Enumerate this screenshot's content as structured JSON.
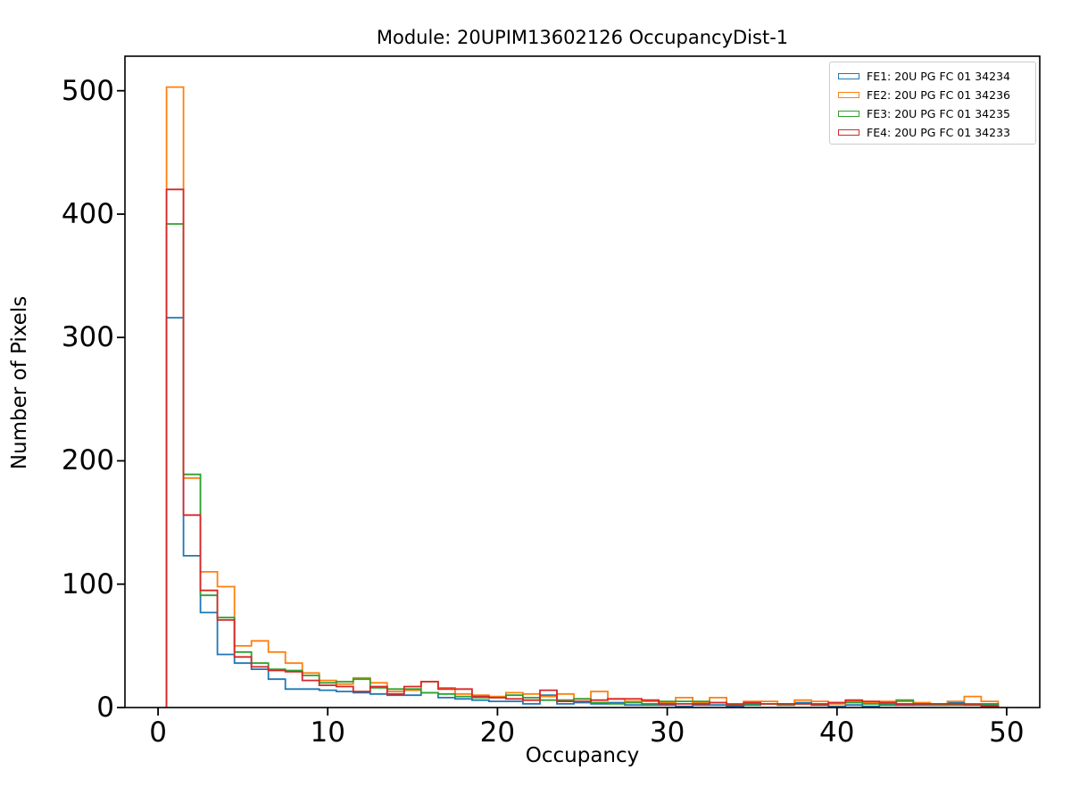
{
  "figure": {
    "title": "Module: 20UPIM13602126 OccupancyDist-1",
    "xlabel": "Occupancy",
    "ylabel": "Number of Pixels"
  },
  "chart_data": {
    "type": "step-histogram",
    "title": "Module: 20UPIM13602126 OccupancyDist-1",
    "xlabel": "Occupancy",
    "ylabel": "Number of Pixels",
    "bin_start": 0.5,
    "bin_width": 1,
    "bin_centers": [
      1,
      2,
      3,
      4,
      5,
      6,
      7,
      8,
      9,
      10,
      11,
      12,
      13,
      14,
      15,
      16,
      17,
      18,
      19,
      20,
      21,
      22,
      23,
      24,
      25,
      26,
      27,
      28,
      29,
      30,
      31,
      32,
      33,
      34,
      35,
      36,
      37,
      38,
      39,
      40,
      41,
      42,
      43,
      44,
      45,
      46,
      47,
      48,
      49
    ],
    "series": [
      {
        "name": "FE1: 20U PG FC 01 34234",
        "color": "#1f77b4",
        "values": [
          316,
          123,
          77,
          43,
          36,
          31,
          23,
          15,
          15,
          14,
          13,
          12,
          11,
          10,
          10,
          12,
          8,
          7,
          6,
          5,
          5,
          3,
          10,
          3,
          4,
          3,
          4,
          2,
          2,
          2,
          1,
          2,
          2,
          1,
          2,
          3,
          2,
          4,
          3,
          1,
          2,
          1,
          2,
          3,
          2,
          2,
          4,
          3,
          2
        ]
      },
      {
        "name": "FE2: 20U PG FC 01 34236",
        "color": "#ff7f0e",
        "values": [
          503,
          186,
          110,
          98,
          50,
          54,
          45,
          36,
          28,
          22,
          19,
          24,
          20,
          13,
          14,
          21,
          16,
          11,
          10,
          9,
          12,
          11,
          9,
          11,
          7,
          13,
          7,
          5,
          5,
          4,
          8,
          4,
          8,
          3,
          5,
          5,
          3,
          6,
          5,
          3,
          5,
          4,
          5,
          5,
          4,
          3,
          5,
          9,
          5
        ]
      },
      {
        "name": "FE3: 20U PG FC 01 34235",
        "color": "#2ca02c",
        "values": [
          392,
          189,
          91,
          73,
          45,
          36,
          31,
          30,
          26,
          20,
          21,
          23,
          16,
          15,
          15,
          12,
          11,
          9,
          8,
          8,
          10,
          8,
          6,
          6,
          7,
          4,
          3,
          4,
          3,
          5,
          5,
          5,
          4,
          3,
          3,
          3,
          2,
          3,
          2,
          4,
          4,
          3,
          3,
          6,
          3,
          2,
          2,
          3,
          3
        ]
      },
      {
        "name": "FE4: 20U PG FC 01 34233",
        "color": "#d62728",
        "values": [
          420,
          156,
          95,
          71,
          41,
          33,
          30,
          29,
          22,
          18,
          17,
          13,
          17,
          11,
          17,
          21,
          15,
          15,
          9,
          8,
          7,
          6,
          14,
          5,
          5,
          6,
          7,
          7,
          6,
          3,
          3,
          3,
          4,
          2,
          4,
          3,
          3,
          3,
          2,
          4,
          6,
          5,
          4,
          2,
          3,
          3,
          3,
          2,
          1
        ]
      }
    ],
    "xticks": [
      0,
      10,
      20,
      30,
      40,
      50
    ],
    "yticks": [
      0,
      100,
      200,
      300,
      400,
      500
    ],
    "xlim": [
      -1.95,
      51.95
    ],
    "ylim": [
      0,
      528
    ],
    "grid": false,
    "legend_position": "upper right"
  }
}
